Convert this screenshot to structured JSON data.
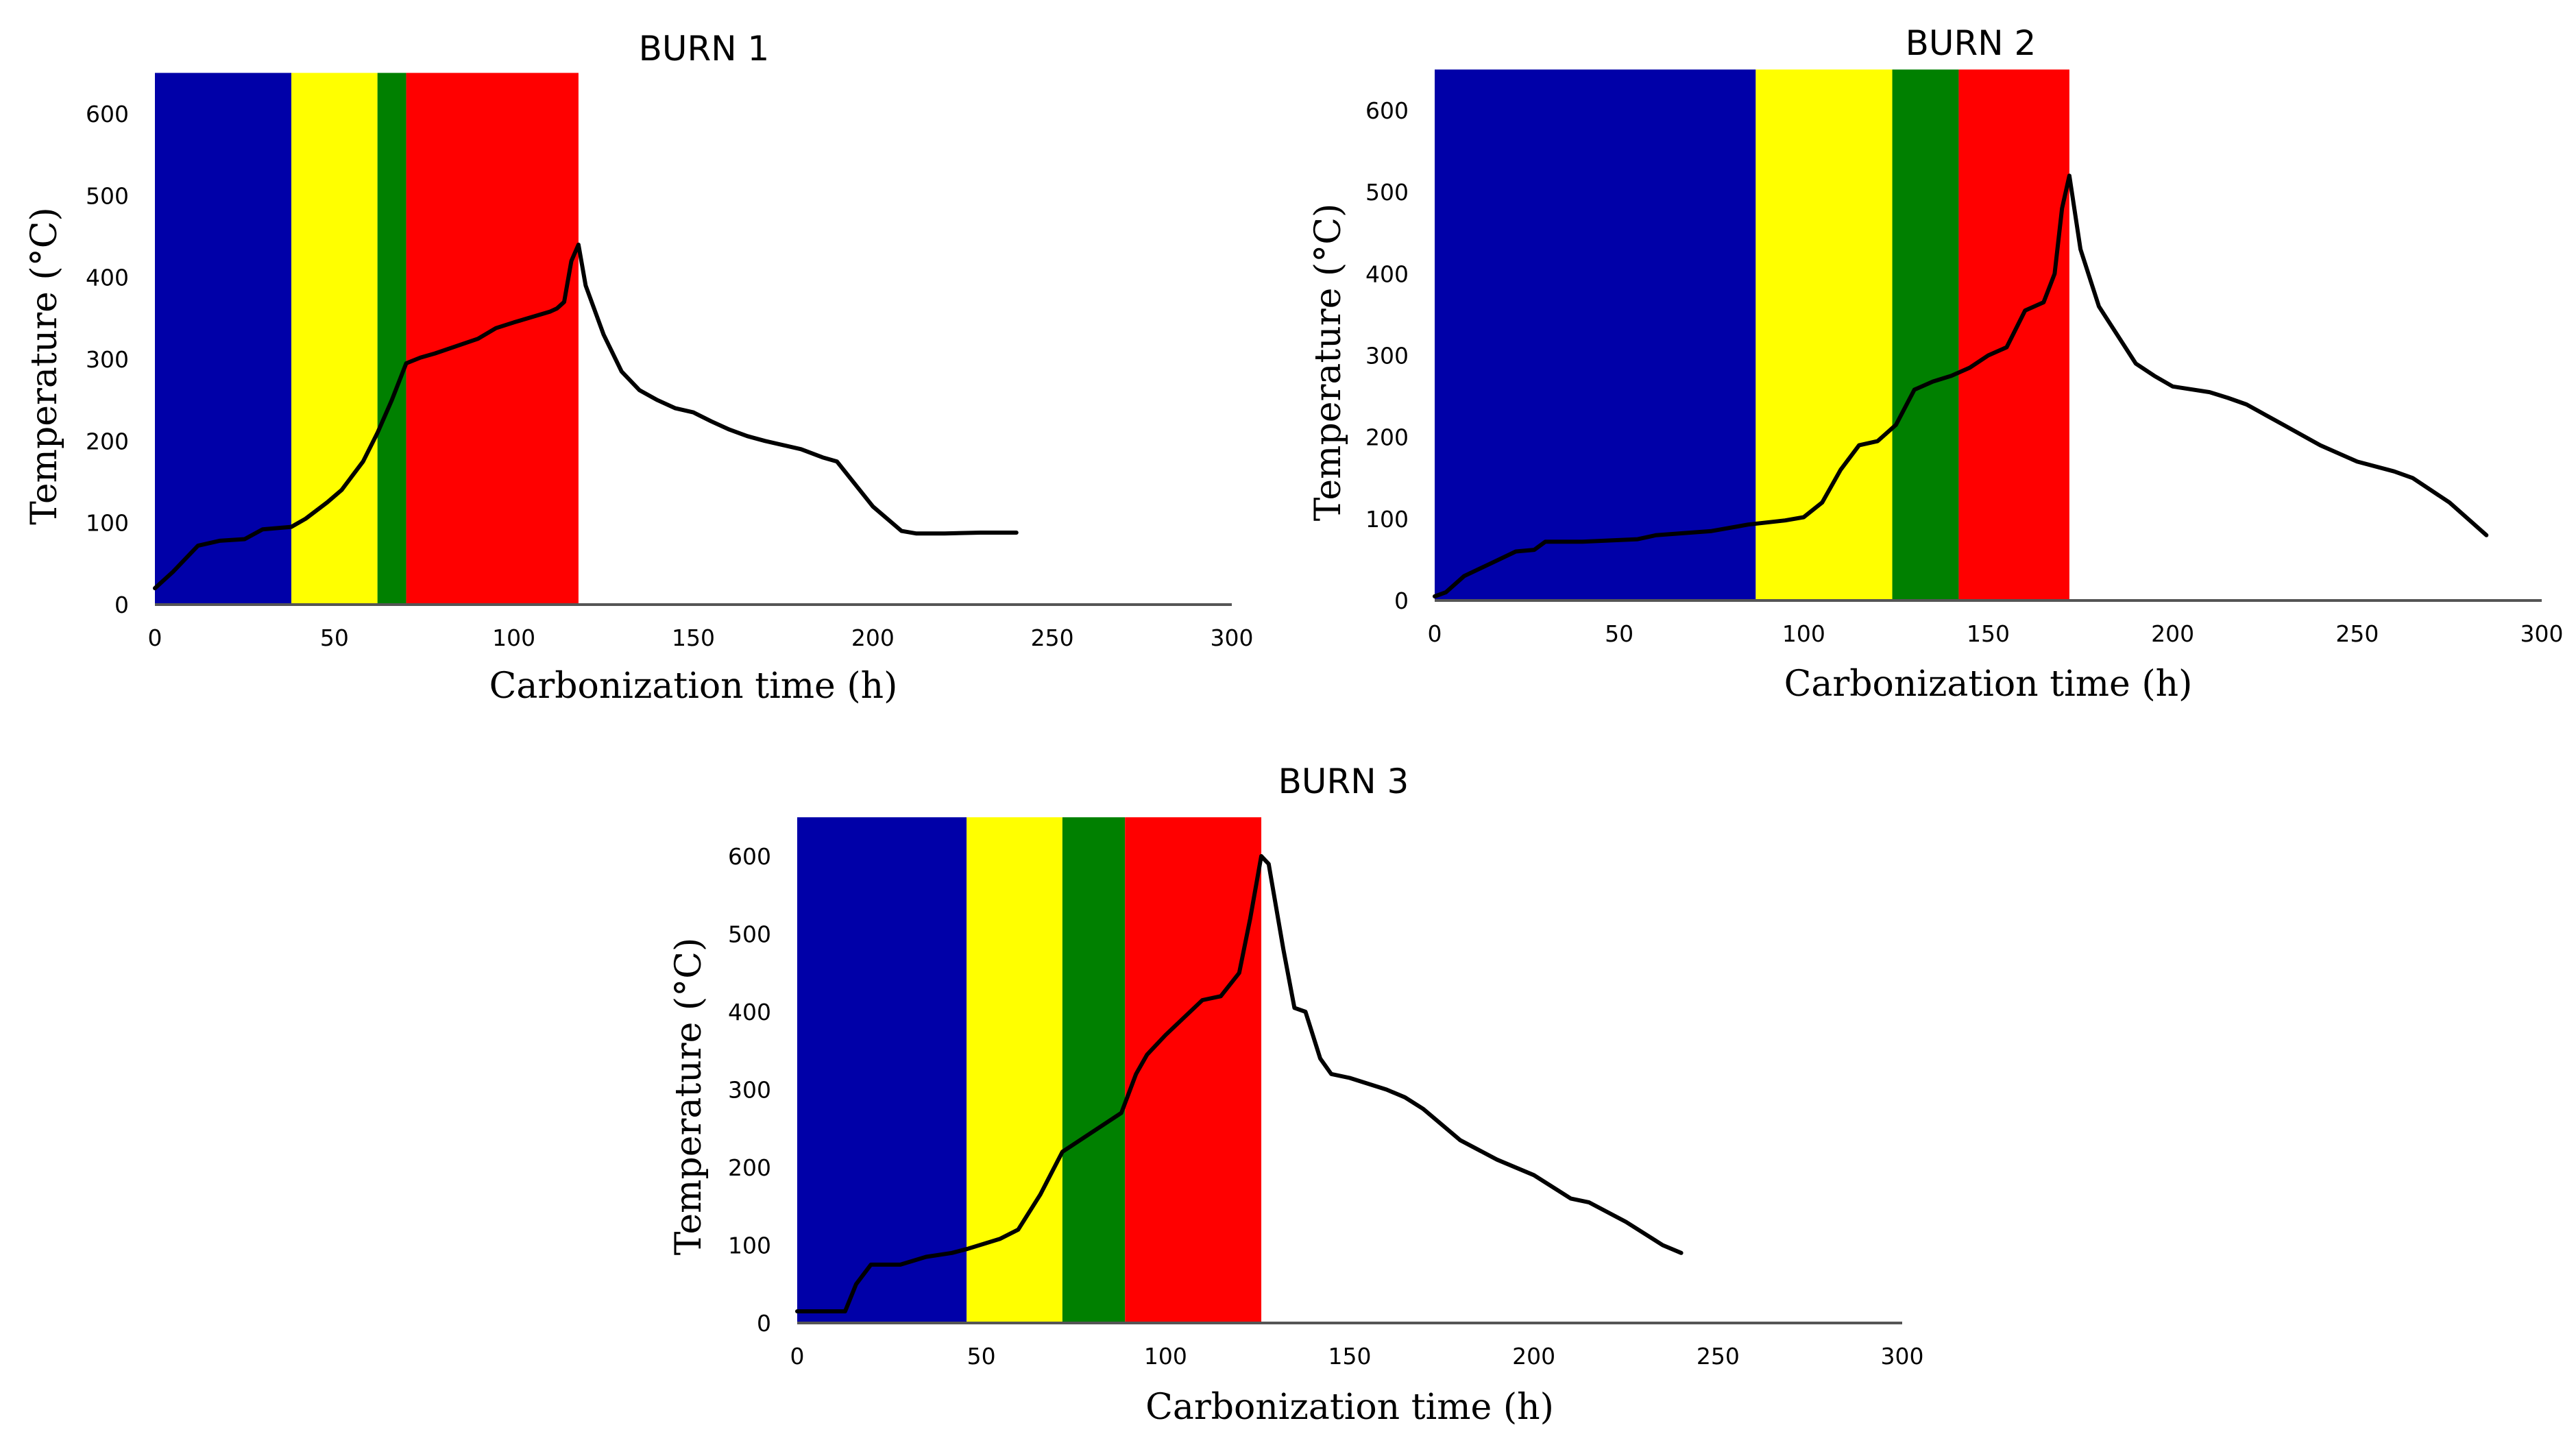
{
  "chart_data": [
    {
      "type": "line",
      "title": "BURN 1",
      "xlabel": "Carbonization time (h)",
      "ylabel": "Temperature (°C)",
      "xlim": [
        0,
        300
      ],
      "ylim": [
        0,
        650
      ],
      "x_ticks": [
        0,
        50,
        100,
        150,
        200,
        250,
        300
      ],
      "y_ticks": [
        0,
        100,
        200,
        300,
        400,
        500,
        600
      ],
      "grid": false,
      "bands": [
        {
          "from": 0,
          "to": 38,
          "color": "#0000a8"
        },
        {
          "from": 38,
          "to": 62,
          "color": "#ffff00"
        },
        {
          "from": 62,
          "to": 70,
          "color": "#008000"
        },
        {
          "from": 70,
          "to": 118,
          "color": "#ff0000"
        }
      ],
      "series": [
        {
          "color": "#000000",
          "x": [
            0,
            5,
            12,
            18,
            25,
            30,
            38,
            42,
            48,
            52,
            58,
            62,
            66,
            70,
            74,
            78,
            90,
            95,
            100,
            110,
            112,
            114,
            116,
            118,
            120,
            125,
            130,
            135,
            140,
            145,
            150,
            155,
            160,
            165,
            170,
            180,
            186,
            190,
            200,
            208,
            212,
            220,
            230,
            240
          ],
          "y": [
            20,
            40,
            72,
            78,
            80,
            92,
            95,
            105,
            125,
            140,
            175,
            210,
            250,
            295,
            302,
            307,
            325,
            338,
            345,
            358,
            362,
            370,
            420,
            440,
            390,
            330,
            285,
            262,
            250,
            240,
            235,
            224,
            214,
            206,
            200,
            190,
            180,
            175,
            120,
            90,
            87,
            87,
            88,
            88
          ]
        }
      ]
    },
    {
      "type": "line",
      "title": "BURN 2",
      "xlabel": "Carbonization time (h)",
      "ylabel": "Temperature (°C)",
      "xlim": [
        0,
        300
      ],
      "ylim": [
        0,
        650
      ],
      "x_ticks": [
        0,
        50,
        100,
        150,
        200,
        250,
        300
      ],
      "y_ticks": [
        0,
        100,
        200,
        300,
        400,
        500,
        600
      ],
      "grid": false,
      "bands": [
        {
          "from": 0,
          "to": 87,
          "color": "#0000a8"
        },
        {
          "from": 87,
          "to": 124,
          "color": "#ffff00"
        },
        {
          "from": 124,
          "to": 142,
          "color": "#008000"
        },
        {
          "from": 142,
          "to": 172,
          "color": "#ff0000"
        }
      ],
      "series": [
        {
          "color": "#000000",
          "x": [
            0,
            3,
            8,
            15,
            22,
            27,
            30,
            40,
            55,
            60,
            75,
            85,
            95,
            100,
            105,
            110,
            115,
            120,
            125,
            130,
            135,
            140,
            145,
            150,
            155,
            160,
            165,
            168,
            170,
            172,
            175,
            180,
            190,
            195,
            200,
            210,
            215,
            220,
            230,
            240,
            250,
            260,
            265,
            275,
            285
          ],
          "y": [
            5,
            10,
            30,
            45,
            60,
            62,
            72,
            72,
            75,
            80,
            85,
            93,
            98,
            102,
            120,
            160,
            190,
            195,
            215,
            258,
            268,
            275,
            285,
            300,
            310,
            355,
            365,
            400,
            480,
            520,
            430,
            360,
            290,
            275,
            262,
            255,
            248,
            240,
            215,
            190,
            170,
            158,
            150,
            120,
            80
          ]
        }
      ]
    },
    {
      "type": "line",
      "title": "BURN 3",
      "xlabel": "Carbonization time (h)",
      "ylabel": "Temperature (°C)",
      "xlim": [
        0,
        300
      ],
      "ylim": [
        0,
        650
      ],
      "x_ticks": [
        0,
        50,
        100,
        150,
        200,
        250,
        300
      ],
      "y_ticks": [
        0,
        100,
        200,
        300,
        400,
        500,
        600
      ],
      "grid": false,
      "bands": [
        {
          "from": 0,
          "to": 46,
          "color": "#0000a8"
        },
        {
          "from": 46,
          "to": 72,
          "color": "#ffff00"
        },
        {
          "from": 72,
          "to": 89,
          "color": "#008000"
        },
        {
          "from": 89,
          "to": 126,
          "color": "#ff0000"
        }
      ],
      "series": [
        {
          "color": "#000000",
          "x": [
            0,
            13,
            16,
            20,
            28,
            35,
            42,
            46,
            55,
            60,
            66,
            72,
            80,
            88,
            92,
            95,
            100,
            110,
            115,
            120,
            123,
            126,
            128,
            132,
            135,
            138,
            142,
            145,
            150,
            160,
            165,
            170,
            180,
            190,
            200,
            210,
            215,
            225,
            235,
            240
          ],
          "y": [
            15,
            15,
            50,
            75,
            75,
            85,
            90,
            95,
            108,
            120,
            165,
            220,
            245,
            270,
            320,
            345,
            370,
            415,
            420,
            450,
            520,
            600,
            590,
            480,
            405,
            400,
            340,
            320,
            315,
            300,
            290,
            275,
            235,
            210,
            190,
            160,
            155,
            130,
            100,
            90
          ]
        }
      ]
    }
  ]
}
